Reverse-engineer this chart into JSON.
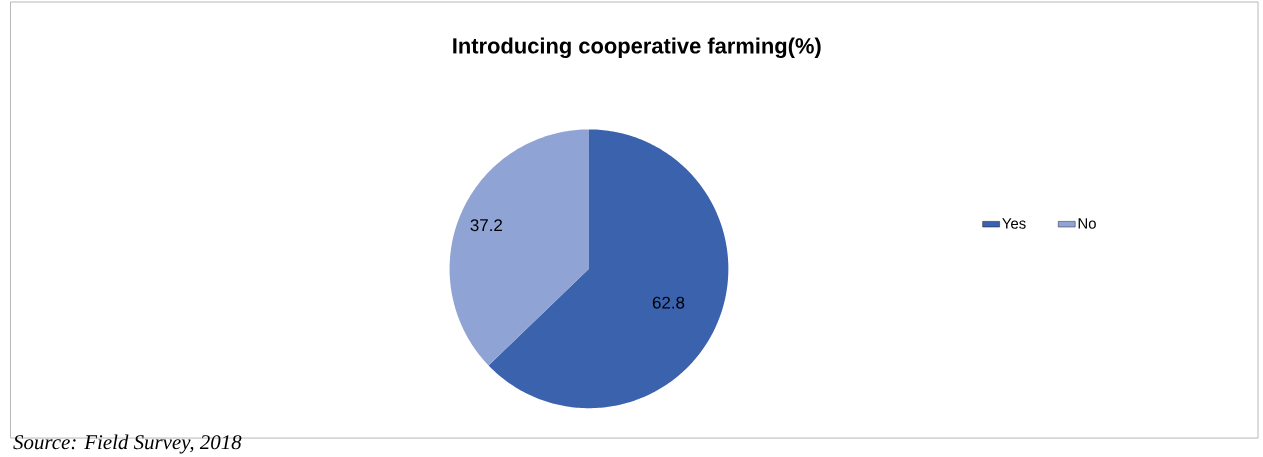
{
  "chart_data": {
    "type": "pie",
    "title": "Introducing cooperative farming(%)",
    "categories": [
      "Yes",
      "No"
    ],
    "values": [
      62.8,
      37.2
    ],
    "colors": [
      "#3a62ad",
      "#8fa3d4"
    ],
    "data_labels": true,
    "legend": "right",
    "annotations": [
      "Source: Field Survey, 2018"
    ]
  }
}
